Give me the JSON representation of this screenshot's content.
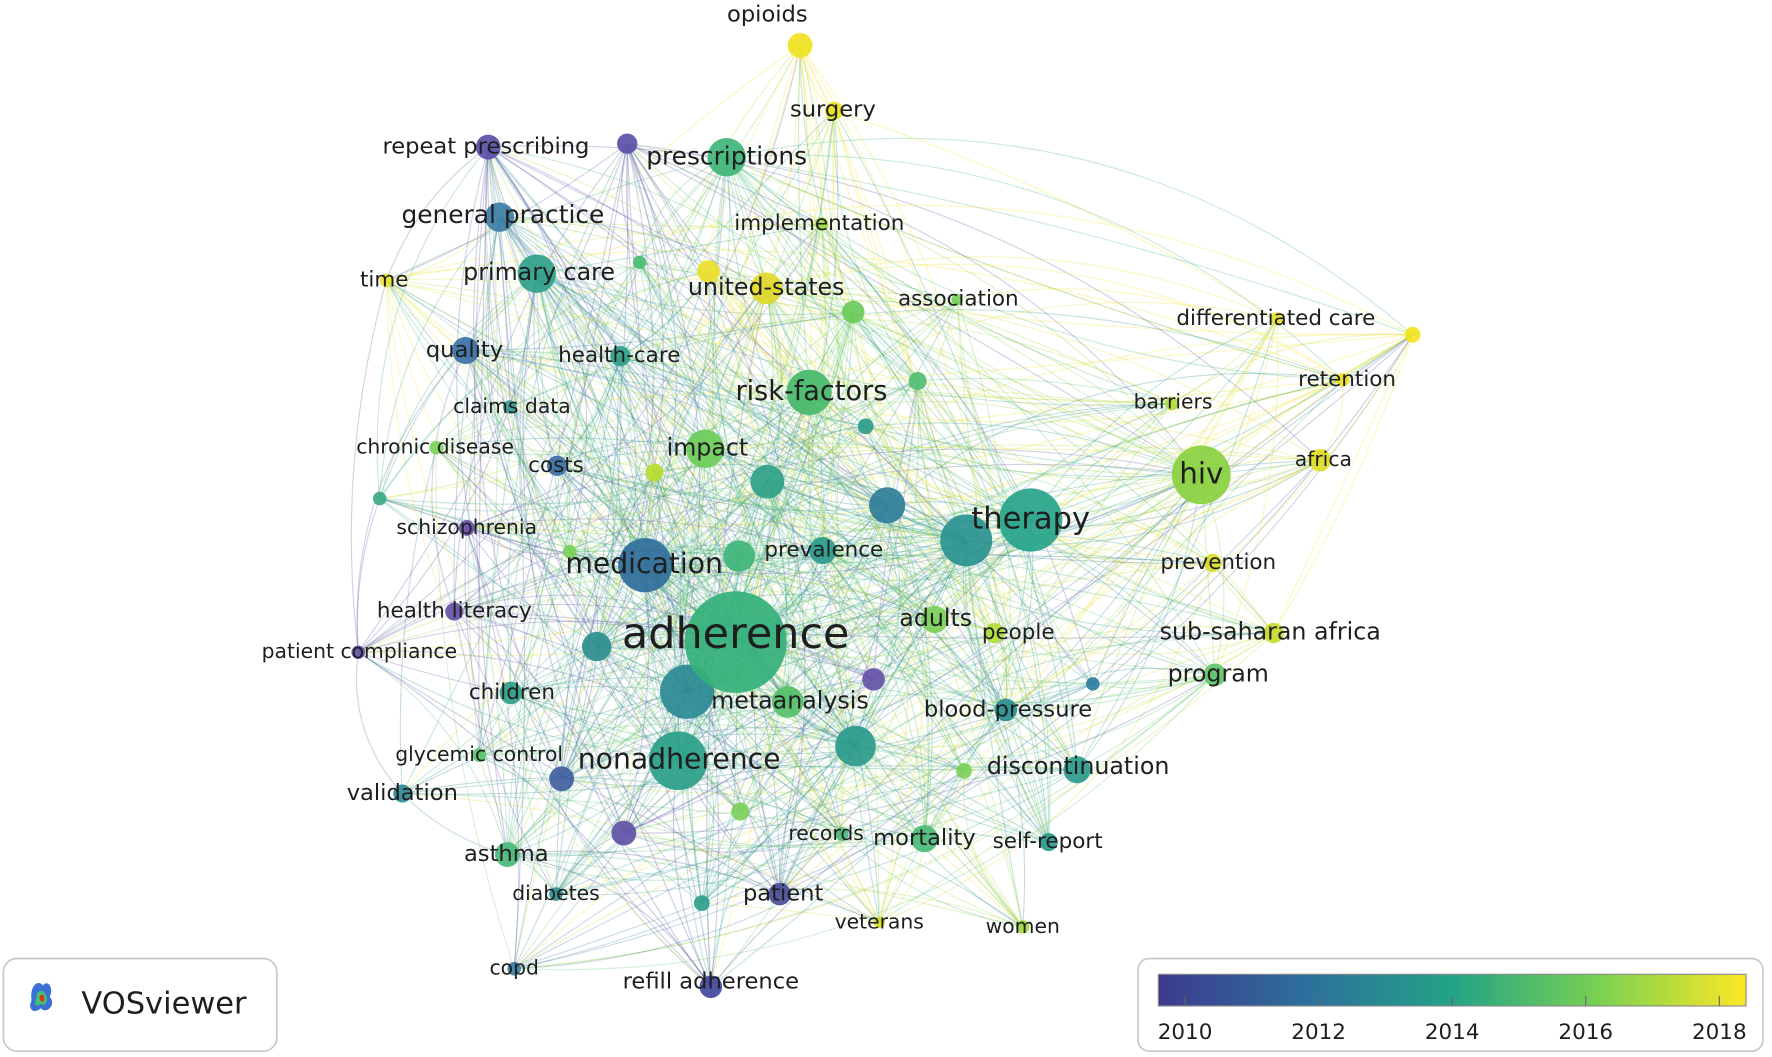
{
  "nodes": [
    {
      "label": "opioids"
    },
    {
      "label": "surgery"
    },
    {
      "label": "repeat prescribing"
    },
    {
      "label": "prescriptions"
    },
    {
      "label": "general practice"
    },
    {
      "label": "implementation"
    },
    {
      "label": "time"
    },
    {
      "label": "primary care"
    },
    {
      "label": "united-states"
    },
    {
      "label": "association"
    },
    {
      "label": "differentiated care"
    },
    {
      "label": "quality"
    },
    {
      "label": "health-care"
    },
    {
      "label": "risk-factors"
    },
    {
      "label": "retention"
    },
    {
      "label": "claims data"
    },
    {
      "label": "barriers"
    },
    {
      "label": "chronic disease"
    },
    {
      "label": "impact"
    },
    {
      "label": "costs"
    },
    {
      "label": "africa"
    },
    {
      "label": "hiv"
    },
    {
      "label": "schizophrenia"
    },
    {
      "label": "therapy"
    },
    {
      "label": "medication"
    },
    {
      "label": "prevalence"
    },
    {
      "label": "prevention"
    },
    {
      "label": "health literacy"
    },
    {
      "label": "adherence"
    },
    {
      "label": "adults"
    },
    {
      "label": "people"
    },
    {
      "label": "sub-saharan africa"
    },
    {
      "label": "patient compliance"
    },
    {
      "label": "program"
    },
    {
      "label": "children"
    },
    {
      "label": "metaanalysis"
    },
    {
      "label": "blood-pressure"
    },
    {
      "label": "glycemic control"
    },
    {
      "label": "nonadherence"
    },
    {
      "label": "discontinuation"
    },
    {
      "label": "validation"
    },
    {
      "label": "records"
    },
    {
      "label": "mortality"
    },
    {
      "label": "self-report"
    },
    {
      "label": "asthma"
    },
    {
      "label": "diabetes"
    },
    {
      "label": "patient"
    },
    {
      "label": "veterans"
    },
    {
      "label": "women"
    },
    {
      "label": "copd"
    },
    {
      "label": "refill adherence"
    }
  ],
  "colorbar": {
    "range": [
      2009.6,
      2018.4
    ],
    "ticks": [
      2010,
      2012,
      2014,
      2016,
      2018
    ]
  },
  "logo": "VOSviewer"
}
